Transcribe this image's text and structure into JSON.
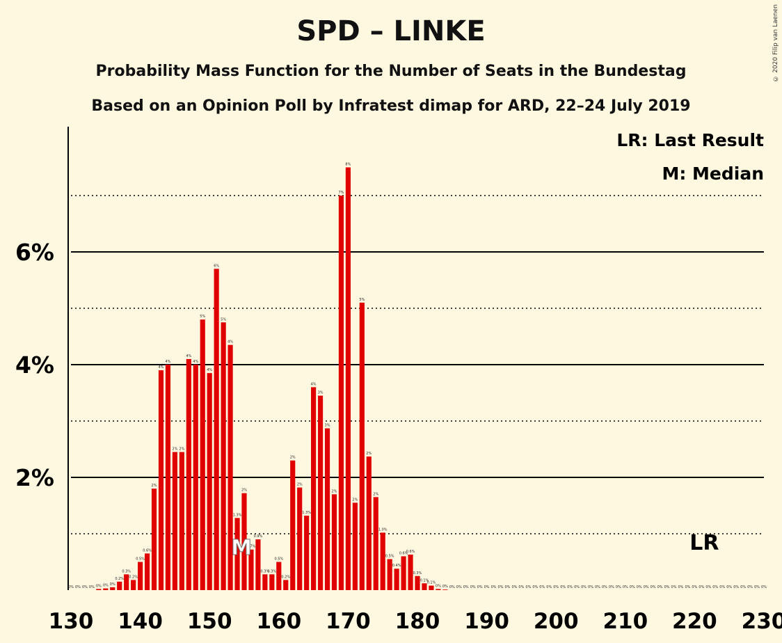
{
  "title": "SPD – LINKE",
  "subtitle1": "Probability Mass Function for the Number of Seats in the Bundestag",
  "subtitle2": "Based on an Opinion Poll by Infratest dimap for ARD, 22–24 July 2019",
  "copyright": "© 2020 Filip van Laenen",
  "legend": {
    "lr": "LR: Last Result",
    "m": "M: Median"
  },
  "markers": {
    "lr_label": "LR",
    "m_label": "M"
  },
  "colors": {
    "bar": "#e00000",
    "background": "#fff8e1",
    "axis": "#000000"
  },
  "chart_data": {
    "type": "bar",
    "x_ticks": [
      130,
      140,
      150,
      160,
      170,
      180,
      190,
      200,
      210,
      220,
      230
    ],
    "y_ticks": [
      {
        "value": 2,
        "label": "2%"
      },
      {
        "value": 4,
        "label": "4%"
      },
      {
        "value": 6,
        "label": "6%"
      }
    ],
    "ylim": [
      0,
      8.2
    ],
    "xlim": [
      130,
      230
    ],
    "median_seat": 155,
    "last_result_seat": 222,
    "seats": [
      130,
      131,
      132,
      133,
      134,
      135,
      136,
      137,
      138,
      139,
      140,
      141,
      142,
      143,
      144,
      145,
      146,
      147,
      148,
      149,
      150,
      151,
      152,
      153,
      154,
      155,
      156,
      157,
      158,
      159,
      160,
      161,
      162,
      163,
      164,
      165,
      166,
      167,
      168,
      169,
      170,
      171,
      172,
      173,
      174,
      175,
      176,
      177,
      178,
      179,
      180,
      181,
      182,
      183,
      184,
      185,
      186,
      187,
      188,
      189,
      190,
      191,
      192,
      193,
      194,
      195,
      196,
      197,
      198,
      199,
      200,
      201,
      202,
      203,
      204,
      205,
      206,
      207,
      208,
      209,
      210,
      211,
      212,
      213,
      214,
      215,
      216,
      217,
      218,
      219,
      220,
      221,
      222,
      223,
      224,
      225,
      226,
      227,
      228,
      229,
      230
    ],
    "values": [
      0,
      0,
      0,
      0,
      0.02,
      0.03,
      0.05,
      0.15,
      0.28,
      0.18,
      0.5,
      0.65,
      1.8,
      3.9,
      4.0,
      2.45,
      2.45,
      4.1,
      4.0,
      4.8,
      3.85,
      5.7,
      4.75,
      4.35,
      1.28,
      1.72,
      0.72,
      0.9,
      0.28,
      0.28,
      0.5,
      0.18,
      2.3,
      1.82,
      1.32,
      3.6,
      3.45,
      2.87,
      1.7,
      7.0,
      7.5,
      1.55,
      5.1,
      2.37,
      1.65,
      1.02,
      0.55,
      0.38,
      0.6,
      0.63,
      0.25,
      0.12,
      0.08,
      0.02,
      0.01,
      0,
      0,
      0,
      0,
      0,
      0,
      0,
      0,
      0,
      0,
      0,
      0,
      0,
      0,
      0,
      0,
      0,
      0,
      0,
      0,
      0,
      0,
      0,
      0,
      0,
      0,
      0,
      0,
      0,
      0,
      0,
      0,
      0,
      0,
      0,
      0,
      0,
      0,
      0,
      0,
      0,
      0,
      0,
      0,
      0,
      0
    ],
    "labels": [
      "0%",
      "0%",
      "0%",
      "0%",
      "0%",
      "0%",
      "0%",
      "0.2%",
      "0.3%",
      "0.2%",
      "0.5%",
      "0.6%",
      "2%",
      "4%",
      "4%",
      "2%",
      "2%",
      "4%",
      "4%",
      "5%",
      "4%",
      "6%",
      "5%",
      "4%",
      "1.3%",
      "2%",
      "0.7%",
      "0.9%",
      "0.3%",
      "0.3%",
      "0.5%",
      "0.2%",
      "2%",
      "2%",
      "1.3%",
      "4%",
      "3%",
      "3%",
      "2%",
      "7%",
      "8%",
      "2%",
      "5%",
      "2%",
      "2%",
      "1.0%",
      "0.5%",
      "0.4%",
      "0.6%",
      "0.6%",
      "0.3%",
      "0.1%",
      "0.1%",
      "0%",
      "0%",
      "0%",
      "0%",
      "0%",
      "0%",
      "0%",
      "0%",
      "0%",
      "0%",
      "0%",
      "0%",
      "0%",
      "0%",
      "0%",
      "0%",
      "0%",
      "0%",
      "0%",
      "0%",
      "0%",
      "0%",
      "0%",
      "0%",
      "0%",
      "0%",
      "0%",
      "0%",
      "0%",
      "0%",
      "0%",
      "0%",
      "0%",
      "0%",
      "0%",
      "0%",
      "0%",
      "0%",
      "0%",
      "0%",
      "0%",
      "0%",
      "0%",
      "0%",
      "0%",
      "0%",
      "0%",
      "0%"
    ]
  }
}
